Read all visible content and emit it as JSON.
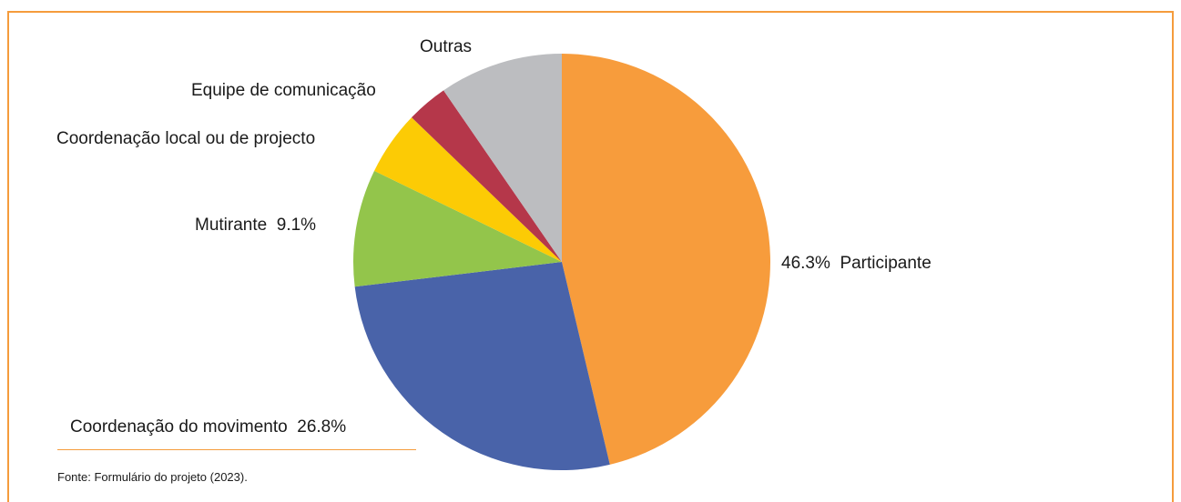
{
  "chart_data": {
    "type": "pie",
    "slices": [
      {
        "label": "Participante",
        "value": 46.3,
        "value_label": "46.3%",
        "color": "#f79c3c"
      },
      {
        "label": "Coordenação do movimento",
        "value": 26.8,
        "value_label": "26.8%",
        "color": "#4963a9"
      },
      {
        "label": "Mutirante",
        "value": 9.1,
        "value_label": "9.1%",
        "color": "#93c54b"
      },
      {
        "label": "Coordenação local ou de projecto",
        "value": 5.0,
        "value_label": "",
        "color": "#fccb05"
      },
      {
        "label": "Equipe de comunicação",
        "value": 3.2,
        "value_label": "",
        "color": "#b5374a"
      },
      {
        "label": "Outras",
        "value": 9.6,
        "value_label": "",
        "color": "#bcbdc0"
      }
    ]
  },
  "source": "Fonte: Formulário do projeto (2023)."
}
